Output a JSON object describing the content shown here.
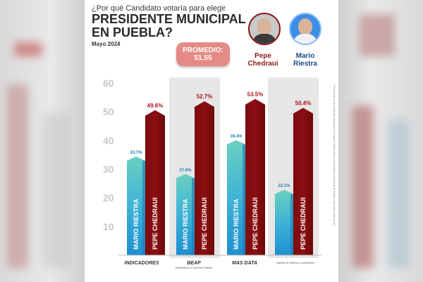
{
  "question": "¿Por qué Candidato votaría para elegir",
  "headline_1": "PRESIDENTE MUNICIPAL",
  "headline_2": "EN PUEBLA?",
  "date": "Mayo 2024",
  "promedio": {
    "label": "PROMEDIO:",
    "value": "51.55"
  },
  "candidates": [
    {
      "name_line1": "Pepe",
      "name_line2": "Chedraui",
      "color": "#8b1a1a"
    },
    {
      "name_line1": "Mario",
      "name_line2": "Riestra",
      "color": "#1b4a8a"
    }
  ],
  "side_note": "*Concentración de encuestas levantadas en Puebla Capital rumbo a la Presidencia Municipal de Puebla, respondan antes en MX.",
  "pollsters": [
    {
      "mark": "INDICADORES",
      "sub": ""
    },
    {
      "mark": "BEAP",
      "sub": "Estadística & Opinión Pública"
    },
    {
      "mark": "MAS DATA",
      "sub": ""
    },
    {
      "mark": "",
      "sub": "Opinión & Métrica Consultores"
    }
  ],
  "colors": {
    "riestra": "#4fb6d8",
    "chedraui": "#8b0f12",
    "band": "#e6e6e6"
  },
  "chart_data": {
    "type": "bar",
    "ylim": [
      0,
      60
    ],
    "yticks": [
      0,
      10,
      20,
      30,
      40,
      50,
      60
    ],
    "grid": false,
    "groups": [
      "INDICADORES",
      "BEAP",
      "MAS DATA",
      "Opinión & Métrica"
    ],
    "series": [
      {
        "name": "MARIO RIESTRA",
        "values": [
          33.7,
          27.6,
          39.4,
          22.1
        ],
        "labels": [
          "33.7%",
          "27.6%",
          "39.4%",
          "22.1%"
        ]
      },
      {
        "name": "PEPE CHEDRAUI",
        "values": [
          49.6,
          52.7,
          53.5,
          50.4
        ],
        "labels": [
          "49.6%",
          "52.7%",
          "53.5%",
          "50.4%"
        ]
      }
    ]
  }
}
